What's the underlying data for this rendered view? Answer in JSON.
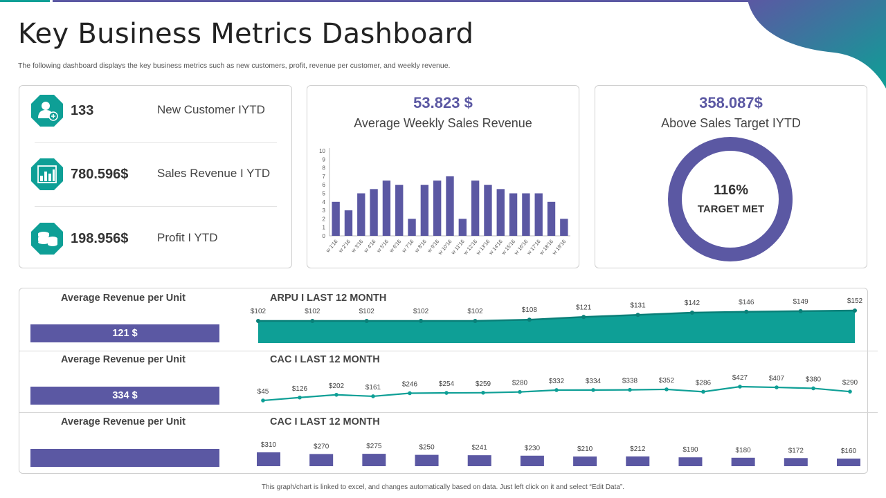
{
  "title": "Key Business Metrics Dashboard",
  "subtitle": "The following dashboard displays the key business metrics such as new customers, profit, revenue per customer, and weekly revenue.",
  "colors": {
    "purple": "#5b58a3",
    "teal": "#0e9f96"
  },
  "kpis": [
    {
      "icon": "add-user-icon",
      "value": "133",
      "label": "New Customer IYTD"
    },
    {
      "icon": "bar-chart-icon",
      "value": "780.596$",
      "label": "Sales Revenue I YTD"
    },
    {
      "icon": "coins-icon",
      "value": "198.956$",
      "label": "Profit I YTD"
    }
  ],
  "weekly": {
    "value": "53.823 $",
    "caption": "Average Weekly Sales Revenue",
    "chart_data": {
      "type": "bar",
      "categories": [
        "w 1'16",
        "w 2'16",
        "w 3'16",
        "w 4'16",
        "w 5'16",
        "w 6'16",
        "w 7'16",
        "w 8'16",
        "w 9'16",
        "w 10'16",
        "w 11'16",
        "w 12'16",
        "w 13'16",
        "w 14'16",
        "w 15'16",
        "w 16'16",
        "w 17'16",
        "w 18'16",
        "w 19'16"
      ],
      "values": [
        4,
        3,
        5,
        5.5,
        6.5,
        6,
        2,
        6,
        6.5,
        7,
        2,
        6.5,
        6,
        5.5,
        5,
        5,
        5,
        4,
        2
      ],
      "ylim": [
        0,
        10
      ],
      "yticks": [
        "0",
        "1",
        "2",
        "3",
        "4",
        "5",
        "6",
        "7",
        "8",
        "9",
        "10"
      ]
    }
  },
  "target": {
    "value": "358.087$",
    "caption": "Above Sales Target IYTD",
    "percent": "116%",
    "status": "TARGET MET"
  },
  "rows": [
    {
      "label": "Average Revenue per Unit",
      "bar_value": "121 $",
      "title": "ARPU I LAST 12 MONTH",
      "chart_data": {
        "type": "area",
        "labels": [
          "$102",
          "$102",
          "$102",
          "$102",
          "$102",
          "$108",
          "$121",
          "$131",
          "$142",
          "$146",
          "$149",
          "$152"
        ],
        "values": [
          102,
          102,
          102,
          102,
          102,
          108,
          121,
          131,
          142,
          146,
          149,
          152
        ],
        "ylim": [
          0,
          160
        ]
      }
    },
    {
      "label": "Average Revenue per Unit",
      "bar_value": "334 $",
      "title": "CAC I LAST 12 MONTH",
      "chart_data": {
        "type": "line",
        "labels": [
          "$45",
          "$126",
          "$202",
          "$161",
          "$246",
          "$254",
          "$259",
          "$280",
          "$332",
          "$334",
          "$338",
          "$352",
          "$286",
          "$427",
          "$407",
          "$380",
          "$290"
        ],
        "values": [
          45,
          126,
          202,
          161,
          246,
          254,
          259,
          280,
          332,
          334,
          338,
          352,
          286,
          427,
          407,
          380,
          290
        ],
        "ylim": [
          0,
          450
        ]
      }
    },
    {
      "label": "Average Revenue per Unit",
      "bar_value": "",
      "title": "CAC I LAST 12 MONTH",
      "chart_data": {
        "type": "bar",
        "labels": [
          "$310",
          "$270",
          "$275",
          "$250",
          "$241",
          "$230",
          "$210",
          "$212",
          "$190",
          "$180",
          "$172",
          "$160"
        ],
        "values": [
          310,
          270,
          275,
          250,
          241,
          230,
          210,
          212,
          190,
          180,
          172,
          160
        ],
        "ylim": [
          0,
          310
        ]
      }
    }
  ],
  "footnote": "This graph/chart is linked to excel, and changes automatically based on data. Just left click on it and select “Edit Data”."
}
